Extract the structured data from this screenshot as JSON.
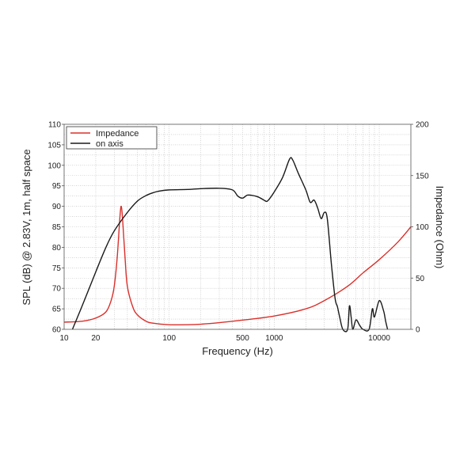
{
  "chart_data": {
    "type": "line",
    "xlabel": "Frequency (Hz)",
    "ylabel": "SPL (dB) @ 2.83V, 1m, half space",
    "y2label": "Impedance (Ohm)",
    "x_scale": "log",
    "xlim": [
      10,
      20000
    ],
    "ylim": [
      60,
      110
    ],
    "y2lim": [
      0,
      200
    ],
    "x_ticks": [
      {
        "v": 10,
        "label": "10"
      },
      {
        "v": 20,
        "label": "20"
      },
      {
        "v": 100,
        "label": "100"
      },
      {
        "v": 500,
        "label": "500"
      },
      {
        "v": 1000,
        "label": "1000"
      },
      {
        "v": 10000,
        "label": "10000"
      }
    ],
    "y_ticks": [
      "60",
      "65",
      "70",
      "75",
      "80",
      "85",
      "90",
      "95",
      "100",
      "105",
      "110"
    ],
    "y2_ticks": [
      "0",
      "50",
      "100",
      "150",
      "200"
    ],
    "grid": true,
    "legend": "top-left",
    "series": [
      {
        "name": "Impedance",
        "axis": "right",
        "color": "#d9302b",
        "x": [
          10,
          15,
          20,
          25,
          28,
          30,
          32,
          34,
          35,
          36,
          38,
          40,
          45,
          50,
          60,
          70,
          100,
          150,
          200,
          300,
          500,
          1000,
          2000,
          3000,
          5000,
          7000,
          10000,
          15000,
          20000
        ],
        "y": [
          7,
          8,
          11,
          17,
          28,
          42,
          70,
          110,
          120,
          108,
          70,
          42,
          22,
          14,
          8,
          6,
          4.5,
          4.5,
          5,
          6.5,
          9,
          13,
          20,
          28,
          42,
          55,
          68,
          85,
          100
        ]
      },
      {
        "name": "on axis",
        "axis": "left",
        "color": "#1a1a1a",
        "x": [
          12,
          15,
          20,
          25,
          30,
          40,
          50,
          60,
          70,
          80,
          100,
          150,
          200,
          300,
          400,
          450,
          500,
          550,
          600,
          700,
          800,
          850,
          900,
          1000,
          1200,
          1400,
          1500,
          1700,
          2000,
          2200,
          2400,
          2600,
          2800,
          3000,
          3200,
          3500,
          3800,
          4000,
          4200,
          4500,
          5000,
          5200,
          5400,
          5600,
          6000,
          6500,
          7000,
          8000,
          8600,
          9000,
          10000,
          11000,
          11500,
          12000
        ],
        "y": [
          60,
          66,
          74,
          80,
          84,
          88.5,
          91.3,
          92.6,
          93.3,
          93.7,
          94,
          94.1,
          94.3,
          94.4,
          94,
          92.5,
          92,
          92.7,
          92.7,
          92.3,
          91.5,
          91.2,
          91.8,
          93.5,
          97,
          101.5,
          101.3,
          98,
          94,
          91,
          91.5,
          89.5,
          87,
          88.5,
          87,
          76,
          67.5,
          65.5,
          63,
          60,
          60,
          65.7,
          63,
          60,
          62.3,
          61,
          60,
          60,
          65,
          63,
          67,
          64.5,
          62,
          60
        ]
      }
    ]
  }
}
